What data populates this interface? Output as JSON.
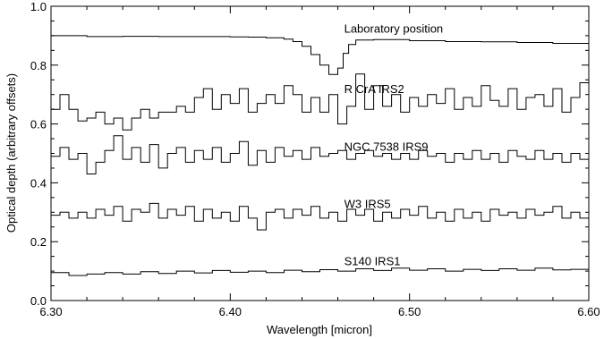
{
  "chart_data": {
    "type": "line",
    "title": "",
    "xlabel": "Wavelength [micron]",
    "ylabel": "Optical depth (arbitrary offsets)",
    "xlim": [
      6.3,
      6.6
    ],
    "ylim": [
      0.0,
      1.0
    ],
    "grid": false,
    "legend": "none",
    "x_ticks": [
      {
        "value": 6.3,
        "label": "6.30"
      },
      {
        "value": 6.4,
        "label": "6.40"
      },
      {
        "value": 6.5,
        "label": "6.50"
      },
      {
        "value": 6.6,
        "label": "6.60"
      }
    ],
    "y_ticks": [
      {
        "value": 0.0,
        "label": "0.0"
      },
      {
        "value": 0.2,
        "label": "0.2"
      },
      {
        "value": 0.4,
        "label": "0.4"
      },
      {
        "value": 0.6,
        "label": "0.6"
      },
      {
        "value": 0.8,
        "label": "0.8"
      },
      {
        "value": 1.0,
        "label": "1.0"
      }
    ],
    "series": [
      {
        "name": "Laboratory position",
        "label_at": [
          6.48,
          0.925
        ],
        "points": [
          [
            6.3,
            0.9
          ],
          [
            6.32,
            0.897
          ],
          [
            6.34,
            0.898
          ],
          [
            6.36,
            0.897
          ],
          [
            6.38,
            0.897
          ],
          [
            6.4,
            0.896
          ],
          [
            6.41,
            0.895
          ],
          [
            6.42,
            0.893
          ],
          [
            6.43,
            0.888
          ],
          [
            6.435,
            0.88
          ],
          [
            6.44,
            0.864
          ],
          [
            6.445,
            0.836
          ],
          [
            6.45,
            0.8
          ],
          [
            6.455,
            0.768
          ],
          [
            6.46,
            0.79
          ],
          [
            6.463,
            0.84
          ],
          [
            6.466,
            0.87
          ],
          [
            6.47,
            0.885
          ],
          [
            6.48,
            0.887
          ],
          [
            6.5,
            0.883
          ],
          [
            6.52,
            0.88
          ],
          [
            6.54,
            0.879
          ],
          [
            6.56,
            0.877
          ],
          [
            6.58,
            0.874
          ],
          [
            6.6,
            0.872
          ]
        ]
      },
      {
        "name": "R CrA IRS2",
        "label_at": [
          6.48,
          0.72
        ],
        "points": [
          [
            6.3,
            0.65
          ],
          [
            6.305,
            0.7
          ],
          [
            6.31,
            0.65
          ],
          [
            6.315,
            0.61
          ],
          [
            6.32,
            0.62
          ],
          [
            6.325,
            0.64
          ],
          [
            6.33,
            0.6
          ],
          [
            6.335,
            0.62
          ],
          [
            6.34,
            0.58
          ],
          [
            6.345,
            0.62
          ],
          [
            6.35,
            0.65
          ],
          [
            6.355,
            0.62
          ],
          [
            6.36,
            0.64
          ],
          [
            6.365,
            0.64
          ],
          [
            6.37,
            0.66
          ],
          [
            6.375,
            0.64
          ],
          [
            6.38,
            0.69
          ],
          [
            6.385,
            0.72
          ],
          [
            6.39,
            0.65
          ],
          [
            6.395,
            0.7
          ],
          [
            6.4,
            0.67
          ],
          [
            6.405,
            0.72
          ],
          [
            6.41,
            0.64
          ],
          [
            6.415,
            0.67
          ],
          [
            6.42,
            0.7
          ],
          [
            6.425,
            0.67
          ],
          [
            6.43,
            0.73
          ],
          [
            6.435,
            0.7
          ],
          [
            6.44,
            0.64
          ],
          [
            6.445,
            0.69
          ],
          [
            6.45,
            0.64
          ],
          [
            6.455,
            0.7
          ],
          [
            6.46,
            0.6
          ],
          [
            6.465,
            0.66
          ],
          [
            6.47,
            0.77
          ],
          [
            6.475,
            0.65
          ],
          [
            6.48,
            0.73
          ],
          [
            6.485,
            0.66
          ],
          [
            6.49,
            0.7
          ],
          [
            6.495,
            0.64
          ],
          [
            6.5,
            0.69
          ],
          [
            6.505,
            0.66
          ],
          [
            6.51,
            0.7
          ],
          [
            6.515,
            0.67
          ],
          [
            6.52,
            0.72
          ],
          [
            6.525,
            0.65
          ],
          [
            6.53,
            0.69
          ],
          [
            6.535,
            0.66
          ],
          [
            6.54,
            0.73
          ],
          [
            6.545,
            0.68
          ],
          [
            6.55,
            0.66
          ],
          [
            6.555,
            0.72
          ],
          [
            6.56,
            0.65
          ],
          [
            6.565,
            0.69
          ],
          [
            6.57,
            0.7
          ],
          [
            6.575,
            0.66
          ],
          [
            6.58,
            0.72
          ],
          [
            6.585,
            0.64
          ],
          [
            6.59,
            0.69
          ],
          [
            6.595,
            0.74
          ],
          [
            6.6,
            0.7
          ]
        ]
      },
      {
        "name": "NGC 7538 IRS9",
        "label_at": [
          6.48,
          0.525
        ],
        "points": [
          [
            6.3,
            0.49
          ],
          [
            6.305,
            0.52
          ],
          [
            6.31,
            0.48
          ],
          [
            6.315,
            0.5
          ],
          [
            6.32,
            0.43
          ],
          [
            6.325,
            0.47
          ],
          [
            6.33,
            0.51
          ],
          [
            6.335,
            0.56
          ],
          [
            6.34,
            0.48
          ],
          [
            6.345,
            0.52
          ],
          [
            6.35,
            0.47
          ],
          [
            6.355,
            0.53
          ],
          [
            6.36,
            0.45
          ],
          [
            6.365,
            0.5
          ],
          [
            6.37,
            0.52
          ],
          [
            6.375,
            0.47
          ],
          [
            6.38,
            0.51
          ],
          [
            6.385,
            0.48
          ],
          [
            6.39,
            0.52
          ],
          [
            6.395,
            0.47
          ],
          [
            6.4,
            0.5
          ],
          [
            6.405,
            0.54
          ],
          [
            6.41,
            0.46
          ],
          [
            6.415,
            0.51
          ],
          [
            6.42,
            0.47
          ],
          [
            6.425,
            0.52
          ],
          [
            6.43,
            0.49
          ],
          [
            6.435,
            0.51
          ],
          [
            6.44,
            0.48
          ],
          [
            6.445,
            0.52
          ],
          [
            6.45,
            0.49
          ],
          [
            6.455,
            0.5
          ],
          [
            6.46,
            0.51
          ],
          [
            6.465,
            0.48
          ],
          [
            6.47,
            0.5
          ],
          [
            6.475,
            0.51
          ],
          [
            6.48,
            0.49
          ],
          [
            6.485,
            0.5
          ],
          [
            6.49,
            0.48
          ],
          [
            6.495,
            0.5
          ],
          [
            6.5,
            0.48
          ],
          [
            6.505,
            0.51
          ],
          [
            6.51,
            0.49
          ],
          [
            6.515,
            0.5
          ],
          [
            6.52,
            0.47
          ],
          [
            6.525,
            0.5
          ],
          [
            6.53,
            0.48
          ],
          [
            6.535,
            0.51
          ],
          [
            6.54,
            0.48
          ],
          [
            6.545,
            0.5
          ],
          [
            6.55,
            0.47
          ],
          [
            6.555,
            0.51
          ],
          [
            6.56,
            0.49
          ],
          [
            6.565,
            0.48
          ],
          [
            6.57,
            0.51
          ],
          [
            6.575,
            0.48
          ],
          [
            6.58,
            0.5
          ],
          [
            6.585,
            0.47
          ],
          [
            6.59,
            0.5
          ],
          [
            6.595,
            0.48
          ],
          [
            6.6,
            0.5
          ]
        ]
      },
      {
        "name": "W3 IRS5",
        "label_at": [
          6.48,
          0.33
        ],
        "points": [
          [
            6.3,
            0.29
          ],
          [
            6.305,
            0.3
          ],
          [
            6.31,
            0.28
          ],
          [
            6.315,
            0.3
          ],
          [
            6.32,
            0.28
          ],
          [
            6.325,
            0.31
          ],
          [
            6.33,
            0.29
          ],
          [
            6.335,
            0.32
          ],
          [
            6.34,
            0.27
          ],
          [
            6.345,
            0.31
          ],
          [
            6.35,
            0.3
          ],
          [
            6.355,
            0.33
          ],
          [
            6.36,
            0.28
          ],
          [
            6.365,
            0.31
          ],
          [
            6.37,
            0.29
          ],
          [
            6.375,
            0.32
          ],
          [
            6.38,
            0.27
          ],
          [
            6.385,
            0.31
          ],
          [
            6.39,
            0.28
          ],
          [
            6.395,
            0.3
          ],
          [
            6.4,
            0.27
          ],
          [
            6.405,
            0.32
          ],
          [
            6.41,
            0.28
          ],
          [
            6.415,
            0.24
          ],
          [
            6.42,
            0.3
          ],
          [
            6.425,
            0.31
          ],
          [
            6.43,
            0.28
          ],
          [
            6.435,
            0.31
          ],
          [
            6.44,
            0.29
          ],
          [
            6.445,
            0.32
          ],
          [
            6.45,
            0.28
          ],
          [
            6.455,
            0.3
          ],
          [
            6.46,
            0.27
          ],
          [
            6.465,
            0.31
          ],
          [
            6.47,
            0.29
          ],
          [
            6.475,
            0.31
          ],
          [
            6.48,
            0.27
          ],
          [
            6.485,
            0.3
          ],
          [
            6.49,
            0.28
          ],
          [
            6.495,
            0.31
          ],
          [
            6.5,
            0.29
          ],
          [
            6.505,
            0.32
          ],
          [
            6.51,
            0.28
          ],
          [
            6.515,
            0.3
          ],
          [
            6.52,
            0.27
          ],
          [
            6.525,
            0.31
          ],
          [
            6.53,
            0.28
          ],
          [
            6.535,
            0.3
          ],
          [
            6.54,
            0.27
          ],
          [
            6.545,
            0.31
          ],
          [
            6.55,
            0.29
          ],
          [
            6.555,
            0.3
          ],
          [
            6.56,
            0.28
          ],
          [
            6.565,
            0.31
          ],
          [
            6.57,
            0.29
          ],
          [
            6.575,
            0.3
          ],
          [
            6.58,
            0.32
          ],
          [
            6.585,
            0.28
          ],
          [
            6.59,
            0.3
          ],
          [
            6.595,
            0.28
          ],
          [
            6.6,
            0.29
          ]
        ]
      },
      {
        "name": "S140 IRS1",
        "label_at": [
          6.48,
          0.135
        ],
        "points": [
          [
            6.3,
            0.095
          ],
          [
            6.31,
            0.085
          ],
          [
            6.32,
            0.09
          ],
          [
            6.33,
            0.095
          ],
          [
            6.34,
            0.09
          ],
          [
            6.35,
            0.098
          ],
          [
            6.36,
            0.092
          ],
          [
            6.37,
            0.1
          ],
          [
            6.38,
            0.094
          ],
          [
            6.39,
            0.102
          ],
          [
            6.4,
            0.096
          ],
          [
            6.41,
            0.1
          ],
          [
            6.42,
            0.095
          ],
          [
            6.43,
            0.103
          ],
          [
            6.44,
            0.098
          ],
          [
            6.45,
            0.105
          ],
          [
            6.46,
            0.1
          ],
          [
            6.47,
            0.108
          ],
          [
            6.48,
            0.102
          ],
          [
            6.49,
            0.11
          ],
          [
            6.5,
            0.103
          ],
          [
            6.51,
            0.108
          ],
          [
            6.52,
            0.1
          ],
          [
            6.53,
            0.106
          ],
          [
            6.54,
            0.102
          ],
          [
            6.55,
            0.108
          ],
          [
            6.56,
            0.103
          ],
          [
            6.57,
            0.11
          ],
          [
            6.58,
            0.104
          ],
          [
            6.59,
            0.106
          ],
          [
            6.6,
            0.1
          ]
        ]
      }
    ]
  }
}
